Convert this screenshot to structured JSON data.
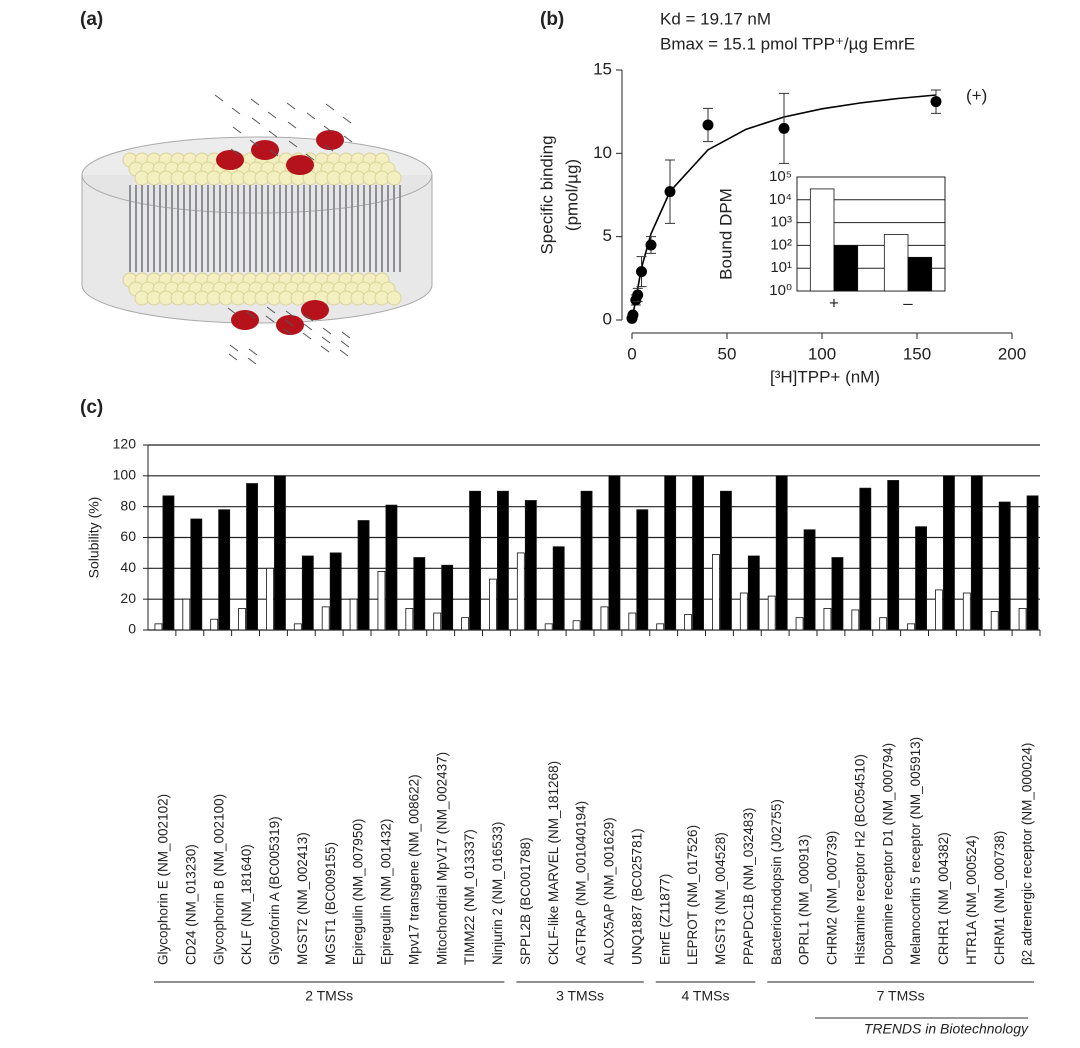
{
  "panels": {
    "a": "(a)",
    "b": "(b)",
    "c": "(c)"
  },
  "credit": "TRENDS in Biotechnology",
  "chart_data": [
    {
      "type": "scatter",
      "annotations": [
        "Kd = 19.17 nM",
        "Bmax = 15.1 pmol TPP⁺/µg EmrE"
      ],
      "point_label": "(+)",
      "xlabel": "[³H]TPP+ (nM)",
      "ylabel": [
        "Specific binding",
        "(pmol/µg)"
      ],
      "x": [
        0,
        0.5,
        2,
        3,
        5,
        10,
        20,
        40,
        80,
        160
      ],
      "y": [
        0.1,
        0.3,
        1.2,
        1.5,
        2.9,
        4.5,
        7.7,
        11.7,
        11.5,
        13.1
      ],
      "errors": [
        0,
        0,
        0.3,
        0.4,
        0.9,
        0.5,
        1.9,
        1.0,
        2.1,
        0.7
      ],
      "fit": {
        "x": [
          0,
          5,
          10,
          20,
          40,
          60,
          80,
          100,
          120,
          140,
          160
        ],
        "y": [
          0,
          3.13,
          5.17,
          7.71,
          10.21,
          11.44,
          12.18,
          12.67,
          13.02,
          13.29,
          13.5
        ]
      },
      "color": "#000000",
      "xlim": [
        0,
        200
      ],
      "xticks": [
        0,
        50,
        100,
        150,
        200
      ],
      "ylim": [
        0,
        15
      ],
      "yticks": [
        0,
        5,
        10,
        15
      ]
    },
    {
      "type": "bar",
      "log_y": true,
      "grid": true,
      "ylabel": "Bound DPM",
      "categories": [
        "+",
        "–"
      ],
      "series": [
        {
          "color": "#ffffff",
          "values": [
            30000,
            300
          ]
        },
        {
          "color": "#000000",
          "values": [
            100,
            30
          ]
        }
      ],
      "ylim": [
        1,
        100000
      ],
      "yticks": [
        {
          "value": 1,
          "label": "10⁰"
        },
        {
          "value": 10,
          "label": "10¹"
        },
        {
          "value": 100,
          "label": "10²"
        },
        {
          "value": 1000,
          "label": "10³"
        },
        {
          "value": 10000,
          "label": "10⁴"
        },
        {
          "value": 100000,
          "label": "10⁵"
        }
      ]
    },
    {
      "type": "bar",
      "grid": true,
      "ylabel": "Solubility (%)",
      "categories": [
        "Glycophorin E (NM_002102)",
        "CD24 (NM_013230)",
        "Glycophorin B (NM_002100)",
        "CKLF (NM_181640)",
        "Glycoforin A (BC005319)",
        "MGST2 (NM_002413)",
        "MGST1 (BC009155)",
        "Epiregulin (NM_007950)",
        "Epiregulin (NM_001432)",
        "Mpv17 transgene (NM_008622)",
        "Mitochondrial MpV17 (NM_002437)",
        "TIMM22 (NM_013337)",
        "Ninjurin 2 (NM_016533)",
        "SPPL2B (BC001788)",
        "CKLF-like MARVEL (NM_181268)",
        "AGTRAP (NM_001040194)",
        "ALOX5AP (NM_001629)",
        "UNQ1887 (BC025781)",
        "EmrE (Z11877)",
        "LEPROT (NM_017526)",
        "MGST3 (NM_004528)",
        "PPAPDC1B (NM_032483)",
        "Bacteriorhodopsin (J02755)",
        "OPRL1 (NM_000913)",
        "CHRM2 (NM_000739)",
        "Histamine receptor H2 (BC054510)",
        "Dopamine receptor D1 (NM_000794)",
        "Melanocortin 5 receptor (NM_005913)",
        "CRHR1 (NM_004382)",
        "HTR1A (NM_000524)",
        "CHRM1 (NM_000738)",
        "β2 adrenergic receptor (NM_000024)"
      ],
      "label_colors": [
        "#222222",
        "#222222",
        "#222222",
        "#222222",
        "#222222",
        "#222222",
        "#c0282d",
        "#c0282d",
        "#222222",
        "#c0282d",
        "#222222",
        "#222222",
        "#222222",
        "#222222",
        "#222222",
        "#222222",
        "#222222",
        "#222222",
        "#2e8b2e",
        "#222222",
        "#222222",
        "#222222",
        "#2e8b2e",
        "#222222",
        "#222222",
        "#222222",
        "#222222",
        "#222222",
        "#222222",
        "#222222",
        "#222222",
        "#222222"
      ],
      "series": [
        {
          "color": "#ffffff",
          "values": [
            4,
            20,
            7,
            14,
            40,
            4,
            15,
            20,
            38,
            14,
            11,
            8,
            33,
            50,
            4,
            6,
            15,
            11,
            4,
            10,
            49,
            24,
            22,
            8,
            14,
            13,
            8,
            4,
            26,
            24,
            12,
            14
          ]
        },
        {
          "color": "#000000",
          "values": [
            87,
            72,
            78,
            95,
            100,
            48,
            50,
            71,
            81,
            47,
            42,
            90,
            90,
            84,
            54,
            90,
            100,
            78,
            100,
            100,
            90,
            48,
            100,
            65,
            47,
            92,
            97,
            67,
            100,
            100,
            83,
            87
          ]
        }
      ],
      "groups": [
        {
          "label": "2 TMSs",
          "count": 13
        },
        {
          "label": "3 TMSs",
          "count": 5
        },
        {
          "label": "4 TMSs",
          "count": 4
        },
        {
          "label": "7 TMSs",
          "count": 10
        }
      ],
      "ylim": [
        0,
        120
      ],
      "yticks": [
        0,
        20,
        40,
        60,
        80,
        100,
        120
      ]
    }
  ]
}
